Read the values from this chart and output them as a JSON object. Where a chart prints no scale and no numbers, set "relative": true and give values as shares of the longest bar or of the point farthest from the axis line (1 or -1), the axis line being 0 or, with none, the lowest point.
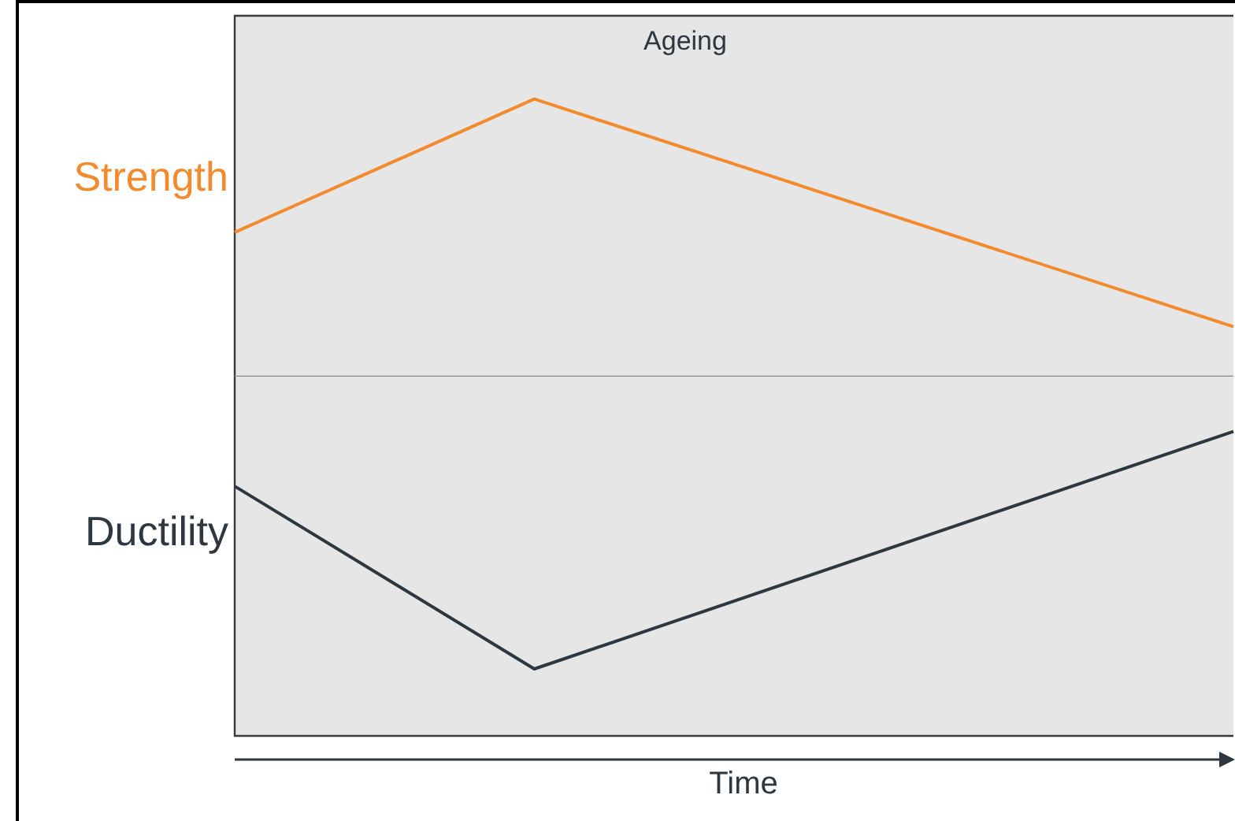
{
  "chart_data": [
    {
      "type": "line",
      "title": "Ageing",
      "ylabel": "Strength",
      "relative": true,
      "categories": [
        null,
        null,
        null,
        null,
        null,
        null,
        null,
        null,
        null,
        null,
        null
      ],
      "tick_labels": false,
      "legend": false,
      "grid": false,
      "marker": "none",
      "line_style": "solid",
      "series": [
        {
          "color": "#f28a2e",
          "values": [
            0.52,
            null,
            null,
            1,
            null,
            null,
            null,
            null,
            null,
            null,
            0.18
          ]
        }
      ]
    },
    {
      "type": "line",
      "xlabel": "Time",
      "ylabel": "Ductility",
      "relative": true,
      "categories": [
        null,
        null,
        null,
        null,
        null,
        null,
        null,
        null,
        null,
        null,
        null
      ],
      "tick_labels": false,
      "legend": false,
      "grid": false,
      "marker": "none",
      "line_style": "solid",
      "series": [
        {
          "color": "#2e3640",
          "values": [
            0.82,
            null,
            null,
            0.22,
            null,
            null,
            null,
            null,
            null,
            null,
            1
          ]
        }
      ]
    }
  ]
}
